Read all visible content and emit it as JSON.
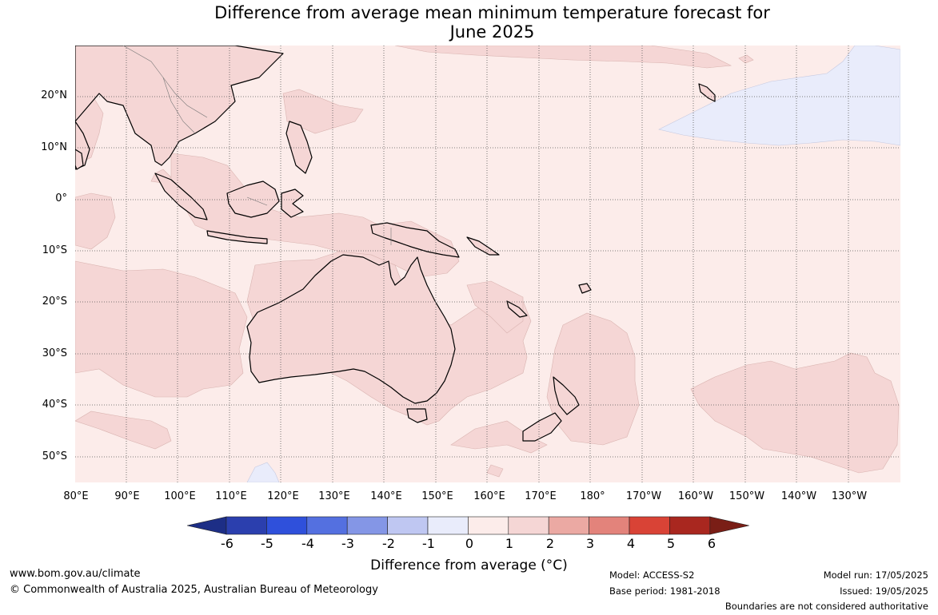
{
  "title_line1": "Difference from average mean minimum temperature forecast for",
  "title_line2": "June 2025",
  "lat_labels": [
    "20°N",
    "10°N",
    "0°",
    "10°S",
    "20°S",
    "30°S",
    "40°S",
    "50°S"
  ],
  "lon_labels": [
    "80°E",
    "90°E",
    "100°E",
    "110°E",
    "120°E",
    "130°E",
    "140°E",
    "150°E",
    "160°E",
    "170°E",
    "180°",
    "170°W",
    "160°W",
    "150°W",
    "140°W",
    "130°W"
  ],
  "colorbar": {
    "ticks": [
      "-6",
      "-5",
      "-4",
      "-3",
      "-2",
      "-1",
      "0",
      "1",
      "2",
      "3",
      "4",
      "5",
      "6"
    ],
    "colors": [
      "#1d2e86",
      "#2b3fae",
      "#2f50db",
      "#5470e0",
      "#8496e6",
      "#bfc7f2",
      "#e9ecfb",
      "#fcecea",
      "#f5d6d5",
      "#eba9a3",
      "#e3837b",
      "#d94336",
      "#a9271f",
      "#7a1e16"
    ],
    "label": "Difference from average (°C)"
  },
  "map": {
    "ocean_color": "#fcecea",
    "warm_color": "#f5d6d5",
    "cool_color": "#e9ecfb"
  },
  "footer": {
    "website": "www.bom.gov.au/climate",
    "copyright": "© Commonwealth of Australia 2025, Australian Bureau of Meteorology",
    "model": "Model: ACCESS-S2",
    "base_period": "Base period: 1981-2018",
    "model_run": "Model run: 17/05/2025",
    "issued": "Issued: 19/05/2025",
    "disclaimer": "Boundaries are not considered authoritative"
  }
}
